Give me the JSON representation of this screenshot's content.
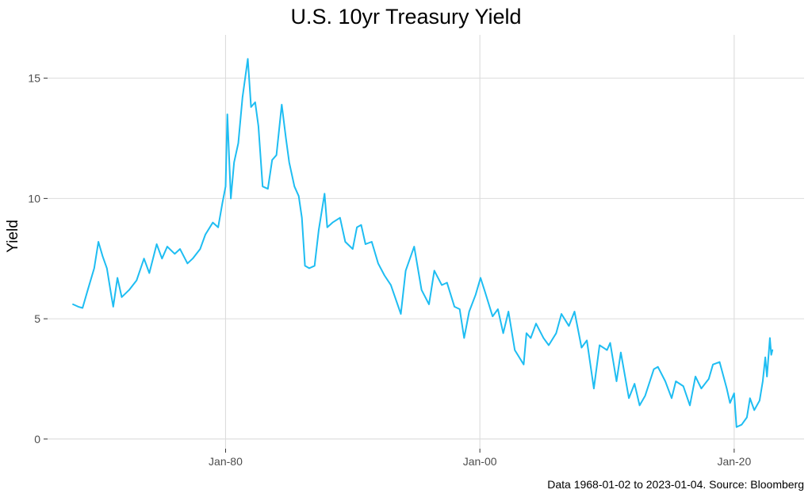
{
  "chart_data": {
    "type": "line",
    "title": "U.S. 10yr Treasury Yield",
    "xlabel": "",
    "ylabel": "Yield",
    "caption": "Data 1968-01-02 to 2023-01-04.  Source: Bloomberg",
    "xlim": [
      "1966-01-01",
      "2025-07-01"
    ],
    "ylim": [
      -0.4,
      16.8
    ],
    "x_ticks": [
      {
        "value": "1980-01-01",
        "label": "Jan-80"
      },
      {
        "value": "2000-01-01",
        "label": "Jan-00"
      },
      {
        "value": "2020-01-01",
        "label": "Jan-20"
      }
    ],
    "y_ticks": [
      {
        "value": 0,
        "label": "0"
      },
      {
        "value": 5,
        "label": "5"
      },
      {
        "value": 10,
        "label": "10"
      },
      {
        "value": 15,
        "label": "15"
      }
    ],
    "grid": true,
    "line_color": "#1ebdf2",
    "series": [
      {
        "x": [
          "1968-01-02",
          "1968-06-01",
          "1968-10-01",
          "1969-03-01",
          "1969-09-01",
          "1970-01-01",
          "1970-05-01",
          "1970-09-01",
          "1971-01-01",
          "1971-03-01",
          "1971-07-01",
          "1971-11-01",
          "1972-06-01",
          "1973-01-01",
          "1973-08-01",
          "1974-01-01",
          "1974-08-01",
          "1975-01-01",
          "1975-06-01",
          "1976-01-01",
          "1976-06-01",
          "1977-01-01",
          "1977-06-01",
          "1978-01-01",
          "1978-06-01",
          "1979-01-01",
          "1979-06-01",
          "1979-10-01",
          "1980-01-01",
          "1980-02-20",
          "1980-06-01",
          "1980-09-01",
          "1981-01-01",
          "1981-05-01",
          "1981-09-30",
          "1982-01-01",
          "1982-05-01",
          "1982-08-01",
          "1982-12-01",
          "1983-05-01",
          "1983-09-01",
          "1984-01-01",
          "1984-06-01",
          "1984-10-01",
          "1985-01-01",
          "1985-06-01",
          "1985-10-01",
          "1986-01-01",
          "1986-04-01",
          "1986-08-01",
          "1987-01-01",
          "1987-05-01",
          "1987-10-15",
          "1988-01-01",
          "1988-06-01",
          "1989-01-01",
          "1989-06-01",
          "1990-01-01",
          "1990-05-01",
          "1990-09-01",
          "1991-01-01",
          "1991-07-01",
          "1992-01-01",
          "1992-07-01",
          "1993-01-01",
          "1993-10-15",
          "1994-03-01",
          "1994-11-01",
          "1995-06-01",
          "1996-01-01",
          "1996-06-01",
          "1997-01-01",
          "1997-06-01",
          "1998-01-01",
          "1998-06-01",
          "1998-10-05",
          "1999-03-01",
          "1999-09-01",
          "2000-01-20",
          "2000-06-01",
          "2001-01-01",
          "2001-06-01",
          "2001-11-01",
          "2002-04-01",
          "2002-10-01",
          "2003-06-13",
          "2003-09-01",
          "2004-01-01",
          "2004-06-01",
          "2005-01-01",
          "2005-06-01",
          "2006-01-01",
          "2006-06-01",
          "2007-01-01",
          "2007-06-12",
          "2008-01-01",
          "2008-06-01",
          "2008-12-18",
          "2009-06-01",
          "2010-01-01",
          "2010-04-01",
          "2010-10-01",
          "2011-02-01",
          "2011-09-22",
          "2012-03-01",
          "2012-07-24",
          "2013-01-01",
          "2013-09-05",
          "2014-01-01",
          "2014-08-01",
          "2015-01-30",
          "2015-06-01",
          "2016-01-01",
          "2016-07-08",
          "2016-12-15",
          "2017-06-01",
          "2018-01-01",
          "2018-05-01",
          "2018-11-08",
          "2019-06-01",
          "2019-09-03",
          "2020-01-01",
          "2020-03-09",
          "2020-08-04",
          "2021-01-01",
          "2021-03-31",
          "2021-08-01",
          "2022-01-01",
          "2022-04-01",
          "2022-06-14",
          "2022-08-01",
          "2022-10-24",
          "2022-12-01",
          "2023-01-04"
        ],
        "values": [
          5.6,
          5.5,
          5.45,
          6.2,
          7.1,
          8.2,
          7.6,
          7.1,
          6.0,
          5.5,
          6.7,
          5.9,
          6.2,
          6.6,
          7.5,
          6.9,
          8.1,
          7.5,
          8.0,
          7.7,
          7.9,
          7.3,
          7.5,
          7.9,
          8.5,
          9.0,
          8.8,
          9.8,
          10.5,
          13.5,
          10.0,
          11.5,
          12.3,
          14.2,
          15.8,
          13.8,
          14.0,
          13.0,
          10.5,
          10.4,
          11.6,
          11.8,
          13.9,
          12.5,
          11.5,
          10.5,
          10.1,
          9.2,
          7.2,
          7.1,
          7.2,
          8.7,
          10.2,
          8.8,
          9.0,
          9.2,
          8.2,
          7.9,
          8.8,
          8.9,
          8.1,
          8.2,
          7.3,
          6.8,
          6.4,
          5.2,
          7.0,
          8.0,
          6.2,
          5.6,
          7.0,
          6.4,
          6.5,
          5.5,
          5.4,
          4.2,
          5.3,
          6.0,
          6.7,
          6.1,
          5.1,
          5.4,
          4.4,
          5.3,
          3.7,
          3.1,
          4.4,
          4.2,
          4.8,
          4.2,
          3.9,
          4.4,
          5.2,
          4.7,
          5.3,
          3.8,
          4.1,
          2.1,
          3.9,
          3.7,
          4.0,
          2.4,
          3.6,
          1.7,
          2.3,
          1.4,
          1.8,
          2.9,
          3.0,
          2.4,
          1.7,
          2.4,
          2.2,
          1.4,
          2.6,
          2.1,
          2.5,
          3.1,
          3.2,
          2.1,
          1.5,
          1.9,
          0.5,
          0.6,
          0.9,
          1.7,
          1.2,
          1.6,
          2.4,
          3.4,
          2.6,
          4.2,
          3.5,
          3.7
        ]
      }
    ]
  }
}
